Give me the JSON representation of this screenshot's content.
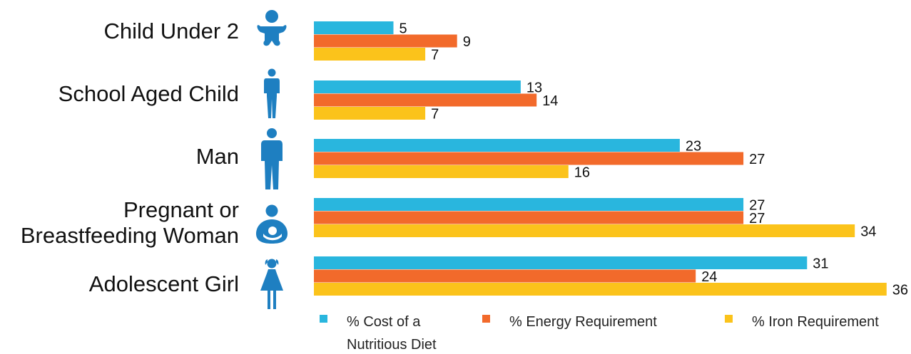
{
  "chart_data": {
    "type": "bar",
    "orientation": "horizontal",
    "categories": [
      [
        "Child Under 2"
      ],
      [
        "School Aged Child"
      ],
      [
        "Man"
      ],
      [
        "Pregnant or",
        "Breastfeeding Woman"
      ],
      [
        "Adolescent Girl"
      ]
    ],
    "category_icons": [
      "baby-icon",
      "child-icon",
      "man-icon",
      "breastfeeding-woman-icon",
      "girl-icon"
    ],
    "series": [
      {
        "name": [
          "% Cost of a",
          "Nutritious Diet"
        ],
        "color": "#29b6de",
        "values": [
          5,
          13,
          23,
          27,
          31
        ]
      },
      {
        "name": [
          "% Energy Requirement"
        ],
        "color": "#f26a2b",
        "values": [
          9,
          14,
          27,
          27,
          24
        ]
      },
      {
        "name": [
          "% Iron Requirement"
        ],
        "color": "#fbc31b",
        "values": [
          7,
          7,
          16,
          34,
          36
        ]
      }
    ],
    "xlim": [
      0,
      38
    ],
    "grid": false,
    "legend_position": "bottom",
    "icon_color": "#1e7fc1"
  }
}
